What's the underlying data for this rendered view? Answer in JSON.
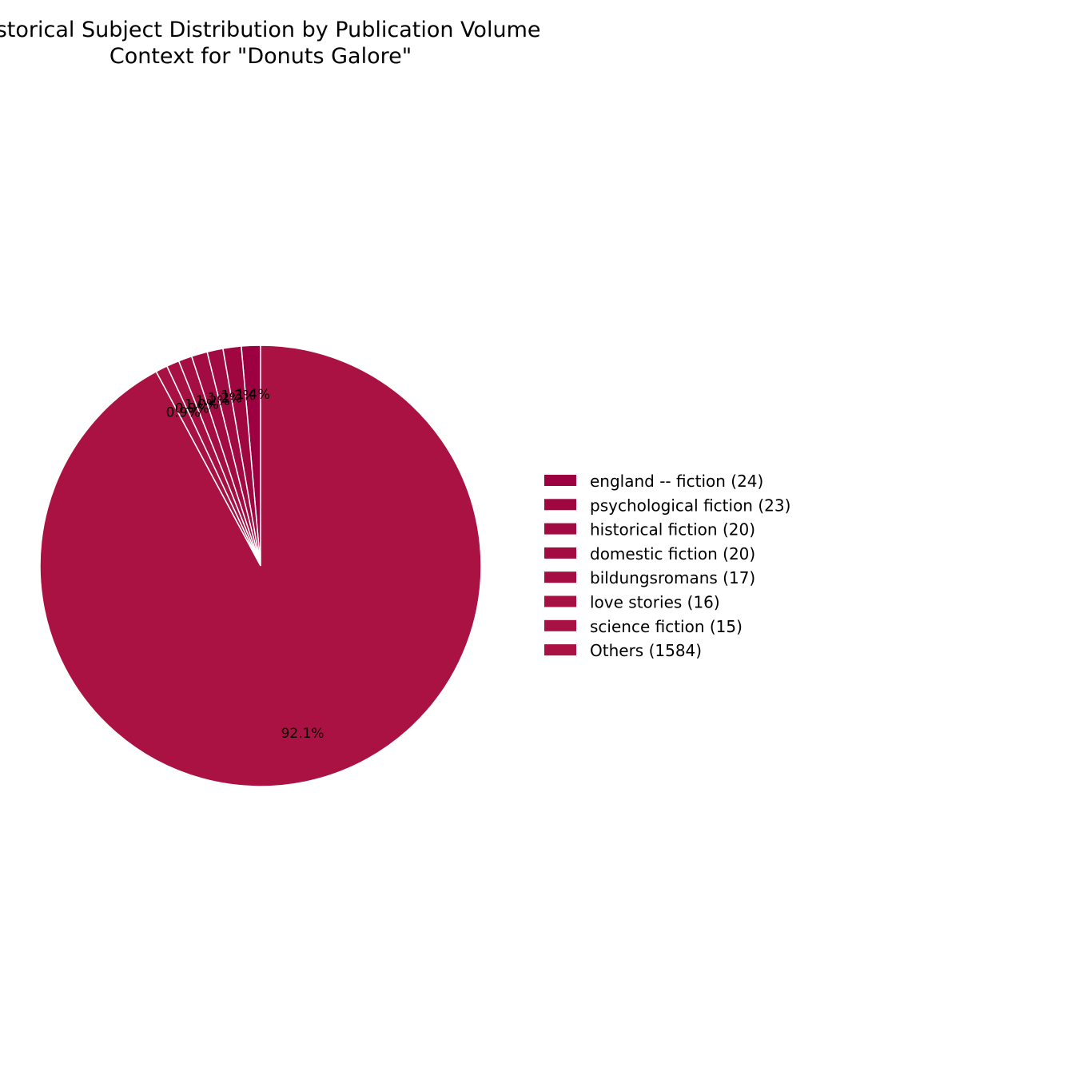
{
  "chart_data": {
    "type": "pie",
    "title": "Historical Subject Distribution by Publication Volume\nContext for \"Donuts Galore\"",
    "title_lines": [
      "Historical Subject Distribution by Publication Volume",
      "Context for \"Donuts Galore\""
    ],
    "start_angle_deg": 90,
    "direction": "counterclockwise",
    "legend_placement": "right",
    "slices": [
      {
        "label": "england -- fiction",
        "value": 24,
        "legend": "england -- fiction (24)",
        "pct_label": "1.4%",
        "color": "#9c0041"
      },
      {
        "label": "psychological fiction",
        "value": 23,
        "legend": "psychological fiction (23)",
        "pct_label": "1.3%",
        "color": "#a00741"
      },
      {
        "label": "historical fiction",
        "value": 20,
        "legend": "historical fiction (20)",
        "pct_label": "1.2%",
        "color": "#a10a42"
      },
      {
        "label": "domestic fiction",
        "value": 20,
        "legend": "domestic fiction (20)",
        "pct_label": "1.2%",
        "color": "#a30c42"
      },
      {
        "label": "bildungsromans",
        "value": 17,
        "legend": "bildungsromans (17)",
        "pct_label": "1.0%",
        "color": "#a50e42"
      },
      {
        "label": "love stories",
        "value": 16,
        "legend": "love stories (16)",
        "pct_label": "0.9%",
        "color": "#a61043"
      },
      {
        "label": "science fiction",
        "value": 15,
        "legend": "science fiction (15)",
        "pct_label": "0.9%",
        "color": "#a81143"
      },
      {
        "label": "Others",
        "value": 1584,
        "legend": "Others (1584)",
        "pct_label": "92.1%",
        "color": "#ab1244"
      }
    ]
  }
}
